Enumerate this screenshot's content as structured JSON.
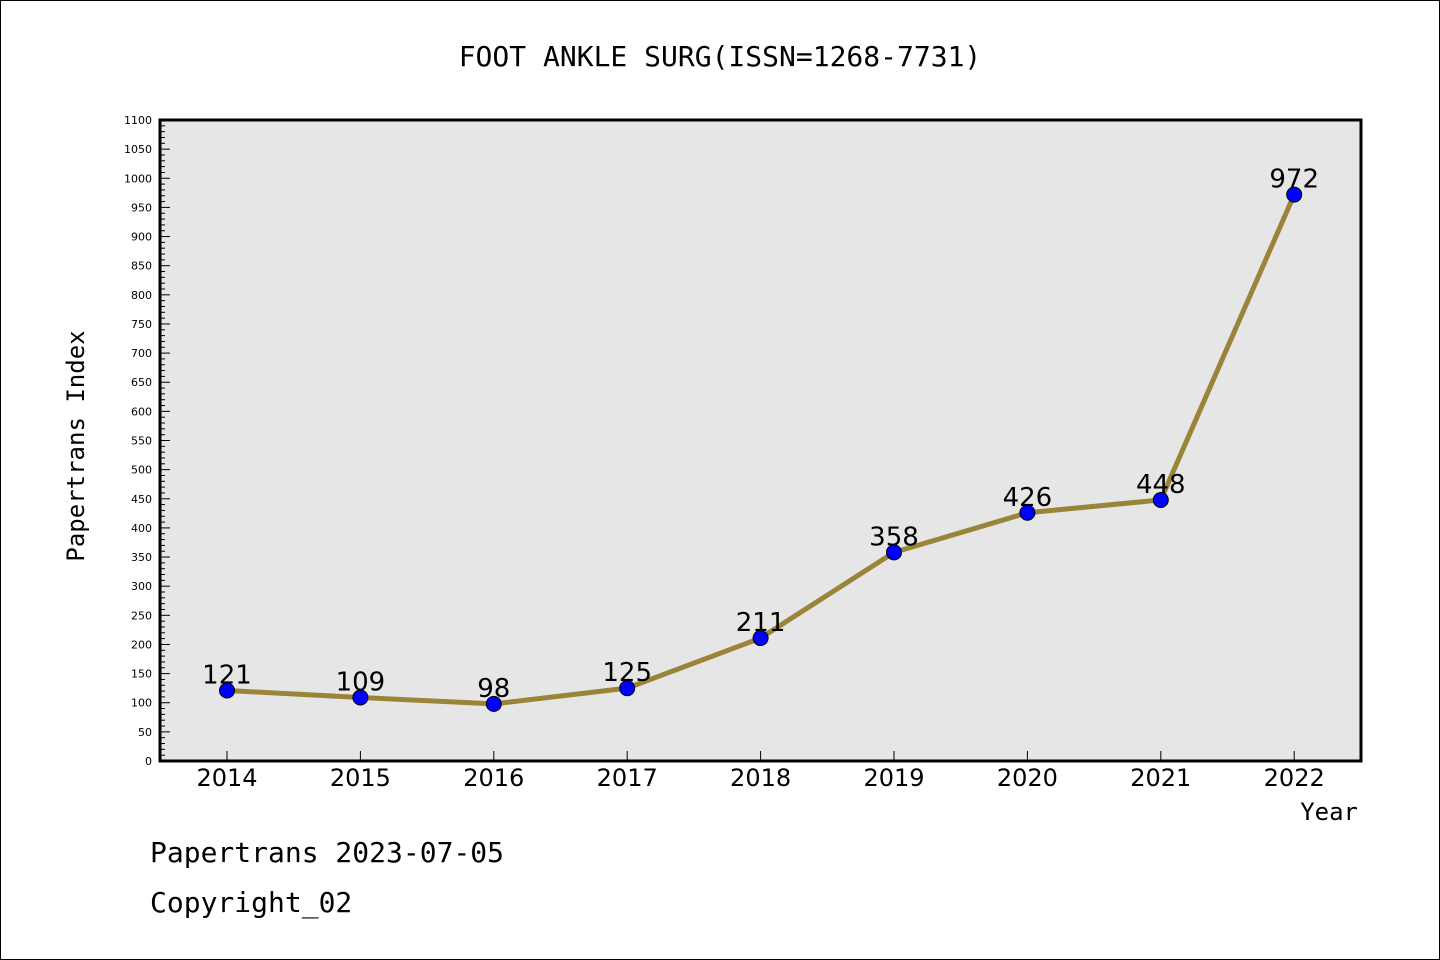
{
  "chart_data": {
    "type": "line",
    "title": "FOOT ANKLE SURG(ISSN=1268-7731)",
    "xlabel": "Year",
    "ylabel": "Papertrans Index",
    "x": [
      "2014",
      "2015",
      "2016",
      "2017",
      "2018",
      "2019",
      "2020",
      "2021",
      "2022"
    ],
    "values": [
      121,
      109,
      98,
      125,
      211,
      358,
      426,
      448,
      972
    ],
    "data_labels": [
      "121",
      "109",
      "98",
      "125",
      "211",
      "358",
      "426",
      "448",
      "972"
    ],
    "ylim": [
      0,
      1100
    ],
    "y_ticks": [
      "0",
      "50",
      "100",
      "150",
      "200",
      "250",
      "300",
      "350",
      "400",
      "450",
      "500",
      "550",
      "600",
      "650",
      "700",
      "750",
      "800",
      "850",
      "900",
      "950",
      "1000",
      "1050",
      "1100"
    ],
    "grid": false,
    "legend": "none",
    "colors": {
      "line": "#9a8439",
      "marker": "#0000ff",
      "plot_background": "#e6e6e6"
    }
  },
  "footer": {
    "line1": "Papertrans 2023-07-05",
    "line2": "Copyright_02"
  }
}
